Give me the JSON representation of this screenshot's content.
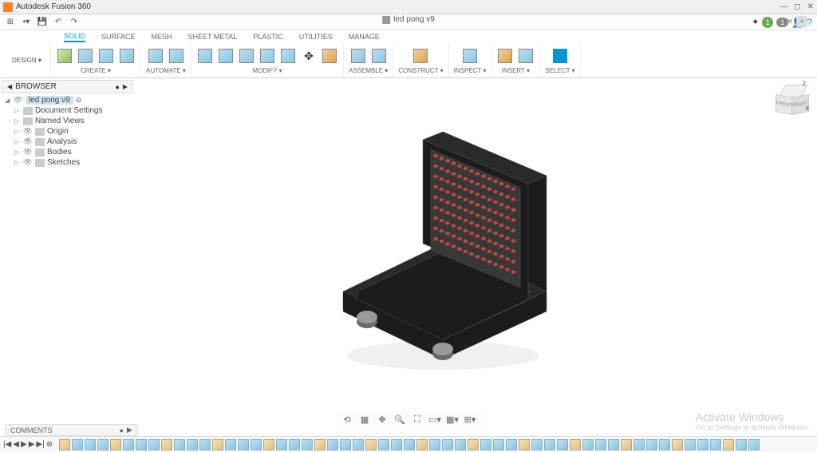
{
  "app": {
    "title": "Autodesk Fusion 360"
  },
  "doc": {
    "name": "led pong v9"
  },
  "status": {
    "notif_count": "1",
    "job_count": "1"
  },
  "workspace": {
    "label": "DESIGN ▾"
  },
  "ribbon_tabs": [
    "SOLID",
    "SURFACE",
    "MESH",
    "SHEET METAL",
    "PLASTIC",
    "UTILITIES",
    "MANAGE"
  ],
  "ribbon_groups": {
    "create": "CREATE ▾",
    "automate": "AUTOMATE ▾",
    "modify": "MODIFY ▾",
    "assemble": "ASSEMBLE ▾",
    "construct": "CONSTRUCT ▾",
    "inspect": "INSPECT ▾",
    "insert": "INSERT ▾",
    "select": "SELECT ▾"
  },
  "browser": {
    "header": "BROWSER",
    "root": "led pong v9",
    "nodes": [
      {
        "label": "Document Settings",
        "icon": "gear"
      },
      {
        "label": "Named Views",
        "icon": "views"
      },
      {
        "label": "Origin",
        "icon": "origin",
        "eye": true
      },
      {
        "label": "Analysis",
        "icon": "analysis",
        "eye": true
      },
      {
        "label": "Bodies",
        "icon": "folder",
        "eye": true
      },
      {
        "label": "Sketches",
        "icon": "folder",
        "eye": true
      }
    ]
  },
  "comments": {
    "label": "COMMENTS"
  },
  "watermark": {
    "line1": "Activate Windows",
    "line2": "Go to Settings to activate Windows."
  },
  "viewcube": {
    "front": "FRONT",
    "right": "RIGHT"
  },
  "model_colors": {
    "body_dark": "#1c1c1c",
    "body_mid": "#2a2a2a",
    "body_light": "#383838",
    "led": "#b84a42",
    "led_dark": "#8a3630",
    "knob": "#9a9a9a",
    "knob_dark": "#6a6a6a",
    "edge": "#555555"
  }
}
